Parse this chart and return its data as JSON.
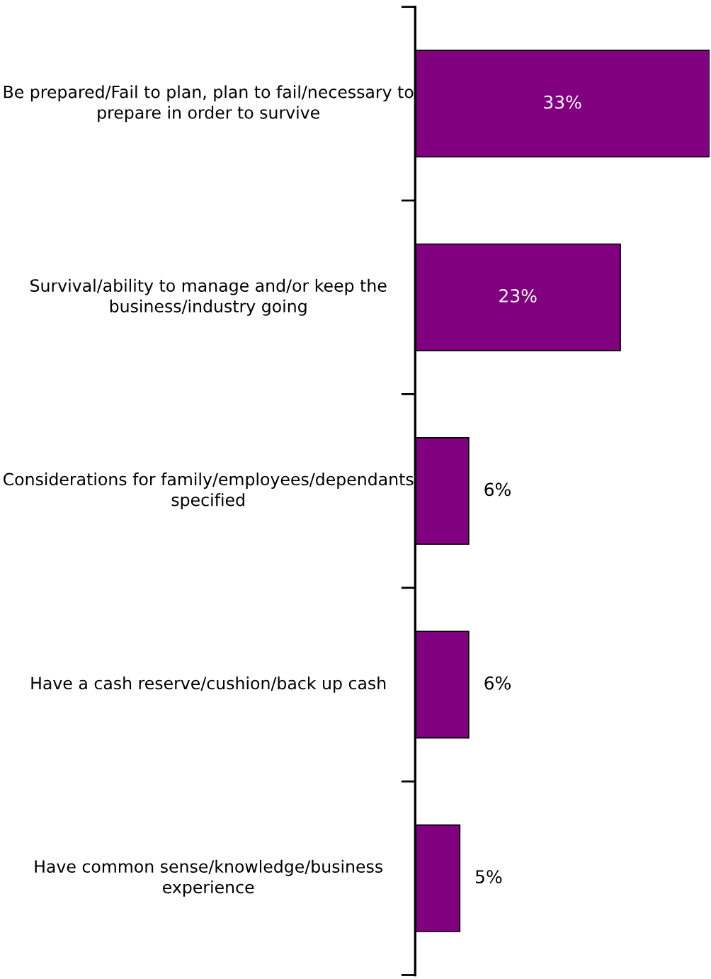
{
  "chart_data": {
    "type": "bar",
    "orientation": "horizontal",
    "categories": [
      "Be prepared/Fail to plan, plan to fail/necessary to prepare in order to survive",
      "Survival/ability to manage and/or keep the business/industry going",
      "Considerations for family/employees/dependants specified",
      "Have a cash reserve/cushion/back up cash",
      "Have common sense/knowledge/business experience"
    ],
    "values": [
      33,
      23,
      6,
      6,
      5
    ],
    "color": "#800080",
    "value_labels": [
      "33%",
      "23%",
      "6%",
      "6%",
      "5%"
    ],
    "tick_labels": "y"
  }
}
